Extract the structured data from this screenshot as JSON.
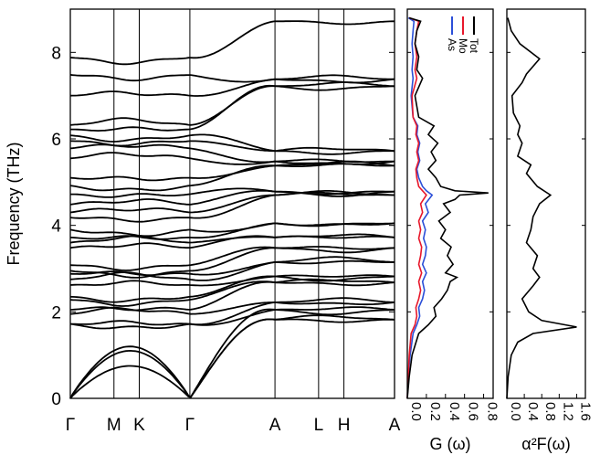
{
  "chart_data": [
    {
      "type": "line",
      "panel": "phonon-dispersion",
      "ylabel": "Frequency (THz)",
      "ylim": [
        0,
        9
      ],
      "yticks": [
        0,
        2,
        4,
        6,
        8
      ],
      "high_symmetry_points": [
        "Γ",
        "M",
        "K",
        "Γ",
        "A",
        "L",
        "H",
        "A"
      ],
      "segment_lengths": [
        1.0,
        0.58,
        1.16,
        1.95,
        1.0,
        0.58,
        1.16
      ],
      "approx_branches_at_gamma": [
        0,
        0,
        0,
        1.72,
        1.72,
        1.95,
        2.05,
        2.28,
        2.35,
        2.62,
        2.75,
        2.88,
        2.95,
        3.08,
        3.48,
        3.6,
        3.72,
        3.9,
        4.18,
        4.3,
        4.48,
        4.72,
        4.92,
        5.1,
        5.55,
        5.78,
        5.95,
        6.08,
        6.22,
        6.32,
        7.0,
        7.48,
        7.88
      ],
      "approx_branches_at_A": [
        1.82,
        1.82,
        2.05,
        2.05,
        2.22,
        2.22,
        2.68,
        2.68,
        2.82,
        2.82,
        3.15,
        3.15,
        3.48,
        3.48,
        3.72,
        3.72,
        4.05,
        4.05,
        4.7,
        4.7,
        4.78,
        4.78,
        5.38,
        5.38,
        5.48,
        5.48,
        5.72,
        5.72,
        7.22,
        7.22,
        7.38,
        7.38,
        8.72
      ]
    },
    {
      "type": "line",
      "panel": "phonon-dos",
      "xlabel": "G (ω)",
      "xlim": [
        0,
        0.9
      ],
      "xticks": [
        "0.0",
        "0.2",
        "0.4",
        "0.6",
        "0.8"
      ],
      "ylim": [
        0,
        9
      ],
      "series": [
        {
          "name": "Tot",
          "color": "#000000",
          "y": [
            0,
            0.5,
            1.0,
            1.5,
            1.7,
            1.9,
            2.1,
            2.3,
            2.5,
            2.7,
            2.8,
            2.9,
            3.1,
            3.3,
            3.5,
            3.7,
            3.9,
            4.1,
            4.3,
            4.5,
            4.6,
            4.7,
            4.75,
            4.8,
            4.9,
            5.1,
            5.3,
            5.5,
            5.7,
            5.9,
            6.1,
            6.3,
            6.5,
            7.0,
            7.4,
            7.6,
            7.9,
            8.2,
            8.5,
            8.72,
            8.8
          ],
          "x": [
            0,
            0.02,
            0.05,
            0.12,
            0.22,
            0.3,
            0.28,
            0.36,
            0.42,
            0.45,
            0.52,
            0.4,
            0.48,
            0.42,
            0.46,
            0.35,
            0.4,
            0.33,
            0.45,
            0.38,
            0.5,
            0.55,
            0.85,
            0.5,
            0.35,
            0.3,
            0.22,
            0.3,
            0.25,
            0.32,
            0.22,
            0.28,
            0.12,
            0.08,
            0.16,
            0.1,
            0.12,
            0.08,
            0.1,
            0.14,
            0.02
          ]
        },
        {
          "name": "Mo",
          "color": "#e8182b",
          "y": [
            0,
            0.5,
            1.0,
            1.5,
            1.7,
            1.9,
            2.1,
            2.3,
            2.5,
            2.7,
            2.9,
            3.1,
            3.3,
            3.5,
            3.7,
            3.9,
            4.1,
            4.3,
            4.5,
            4.7,
            4.8,
            4.9,
            5.1,
            5.3,
            5.5,
            5.7,
            5.9,
            6.1,
            6.3,
            6.5,
            7.0,
            7.4,
            7.6,
            7.9,
            8.2,
            8.5,
            8.72,
            8.8
          ],
          "x": [
            0,
            0.01,
            0.02,
            0.04,
            0.08,
            0.1,
            0.09,
            0.12,
            0.14,
            0.12,
            0.15,
            0.12,
            0.14,
            0.15,
            0.12,
            0.14,
            0.12,
            0.16,
            0.14,
            0.2,
            0.16,
            0.12,
            0.1,
            0.09,
            0.12,
            0.1,
            0.12,
            0.09,
            0.1,
            0.06,
            0.05,
            0.1,
            0.08,
            0.1,
            0.08,
            0.1,
            0.12,
            0.02
          ]
        },
        {
          "name": "As",
          "color": "#2b4fd8",
          "y": [
            0,
            0.5,
            1.0,
            1.5,
            1.7,
            1.9,
            2.1,
            2.3,
            2.5,
            2.7,
            2.9,
            3.1,
            3.3,
            3.5,
            3.7,
            3.9,
            4.1,
            4.3,
            4.5,
            4.7,
            4.8,
            4.9,
            5.1,
            5.3,
            5.5,
            5.7,
            5.9,
            6.1,
            6.3,
            6.5,
            7.0,
            7.4,
            7.6,
            7.9,
            8.2,
            8.5,
            8.72,
            8.8
          ],
          "x": [
            0,
            0.01,
            0.03,
            0.06,
            0.1,
            0.13,
            0.12,
            0.16,
            0.18,
            0.16,
            0.2,
            0.16,
            0.19,
            0.2,
            0.17,
            0.19,
            0.16,
            0.22,
            0.19,
            0.26,
            0.2,
            0.16,
            0.12,
            0.1,
            0.13,
            0.11,
            0.13,
            0.1,
            0.11,
            0.06,
            0.04,
            0.06,
            0.05,
            0.06,
            0.05,
            0.06,
            0.07,
            0.01
          ]
        }
      ]
    },
    {
      "type": "line",
      "panel": "eliashberg-function",
      "xlabel": "α²F(ω)",
      "xlim": [
        0,
        1.8
      ],
      "xticks": [
        "0.0",
        "0.4",
        "0.8",
        "1.2",
        "1.6"
      ],
      "ylim": [
        0,
        9
      ],
      "series": [
        {
          "name": "α²F(ω)",
          "color": "#000000",
          "y": [
            0,
            0.5,
            1.0,
            1.3,
            1.5,
            1.65,
            1.8,
            2.0,
            2.3,
            2.6,
            2.8,
            3.0,
            3.3,
            3.6,
            3.9,
            4.2,
            4.5,
            4.7,
            4.9,
            5.2,
            5.4,
            5.6,
            5.9,
            6.1,
            6.3,
            6.6,
            7.0,
            7.3,
            7.5,
            7.85,
            8.2,
            8.5,
            8.8
          ],
          "x": [
            0,
            0.03,
            0.1,
            0.25,
            0.6,
            1.6,
            0.8,
            0.5,
            0.35,
            0.6,
            0.75,
            0.6,
            0.7,
            0.45,
            0.55,
            0.6,
            0.75,
            1.0,
            0.7,
            0.45,
            0.55,
            0.25,
            0.35,
            0.25,
            0.3,
            0.15,
            0.12,
            0.35,
            0.45,
            0.75,
            0.3,
            0.1,
            0.02
          ]
        }
      ]
    }
  ]
}
